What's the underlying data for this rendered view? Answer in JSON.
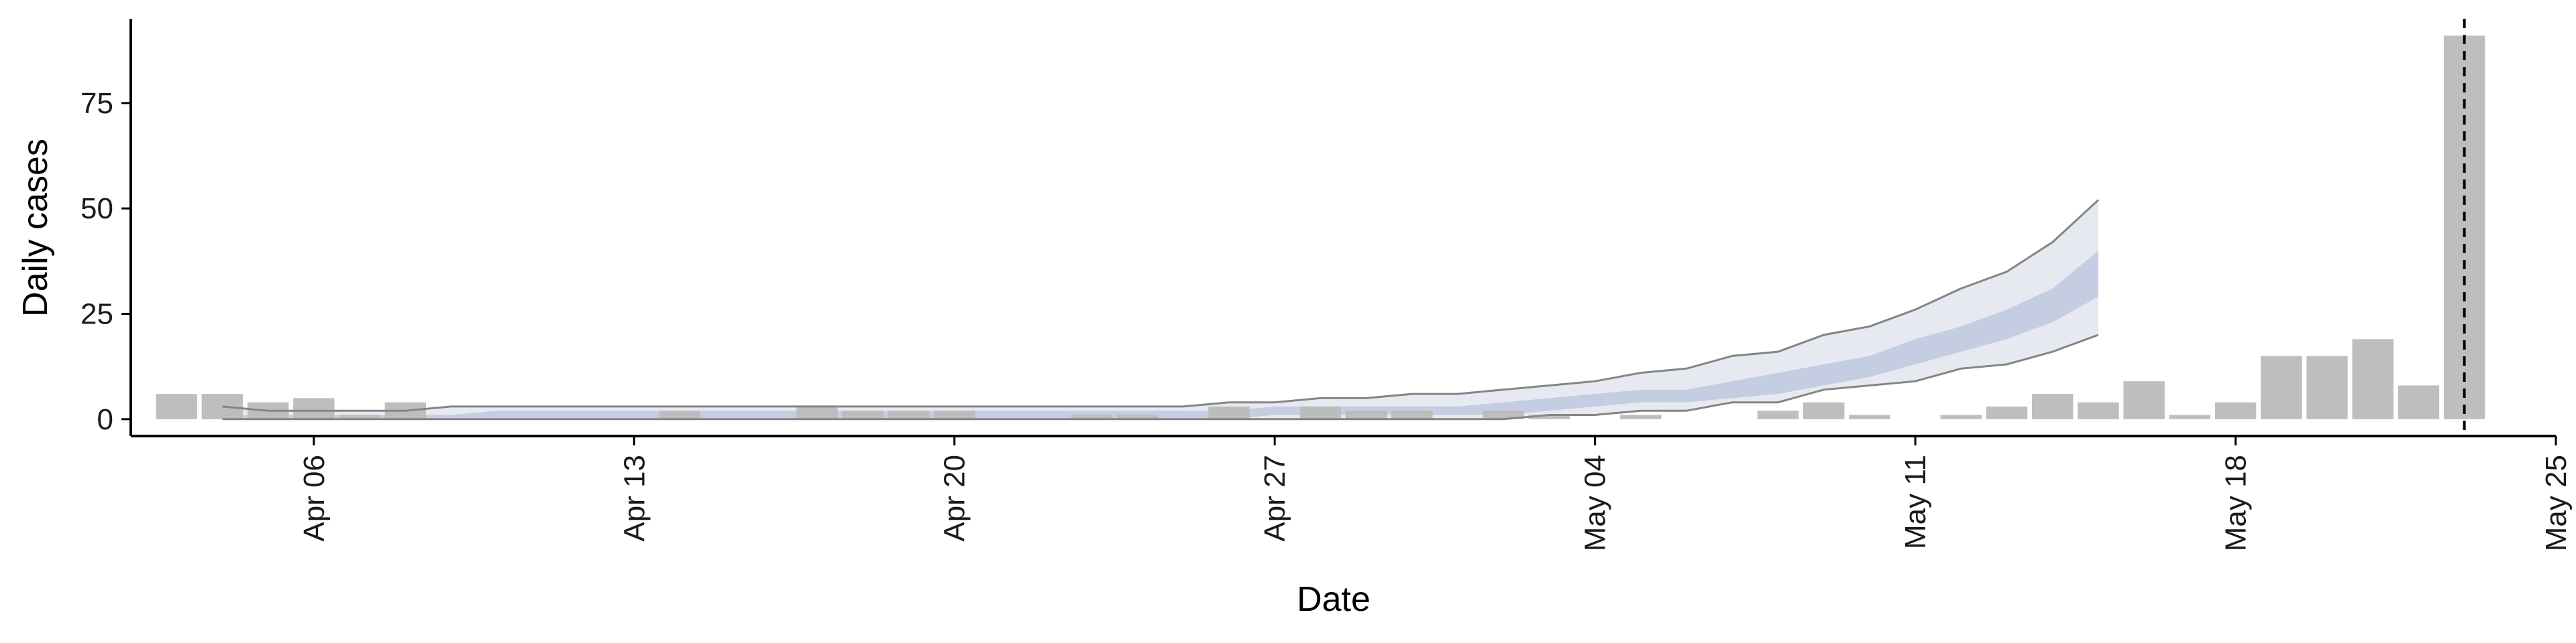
{
  "chart_data": {
    "type": "bar",
    "xlabel": "Date",
    "ylabel": "Daily cases",
    "ylim": [
      -4,
      95
    ],
    "yticks": [
      0,
      25,
      50,
      75
    ],
    "xlim": [
      "2020-04-02",
      "2020-05-25"
    ],
    "xticks": [
      {
        "date": "2020-04-06",
        "label": "Apr 06"
      },
      {
        "date": "2020-04-13",
        "label": "Apr 13"
      },
      {
        "date": "2020-04-20",
        "label": "Apr 20"
      },
      {
        "date": "2020-04-27",
        "label": "Apr 27"
      },
      {
        "date": "2020-05-04",
        "label": "May 04"
      },
      {
        "date": "2020-05-11",
        "label": "May 11"
      },
      {
        "date": "2020-05-18",
        "label": "May 18"
      },
      {
        "date": "2020-05-25",
        "label": "May 25"
      }
    ],
    "grid": false,
    "legend": "none",
    "cases": [
      {
        "date": "2020-04-03",
        "value": 6
      },
      {
        "date": "2020-04-04",
        "value": 6
      },
      {
        "date": "2020-04-05",
        "value": 4
      },
      {
        "date": "2020-04-06",
        "value": 5
      },
      {
        "date": "2020-04-07",
        "value": 1
      },
      {
        "date": "2020-04-08",
        "value": 4
      },
      {
        "date": "2020-04-14",
        "value": 2
      },
      {
        "date": "2020-04-17",
        "value": 3
      },
      {
        "date": "2020-04-18",
        "value": 2
      },
      {
        "date": "2020-04-19",
        "value": 2
      },
      {
        "date": "2020-04-20",
        "value": 2
      },
      {
        "date": "2020-04-23",
        "value": 1
      },
      {
        "date": "2020-04-24",
        "value": 1
      },
      {
        "date": "2020-04-26",
        "value": 3
      },
      {
        "date": "2020-04-28",
        "value": 3
      },
      {
        "date": "2020-04-29",
        "value": 2
      },
      {
        "date": "2020-04-30",
        "value": 2
      },
      {
        "date": "2020-05-02",
        "value": 2
      },
      {
        "date": "2020-05-03",
        "value": 1
      },
      {
        "date": "2020-05-05",
        "value": 1
      },
      {
        "date": "2020-05-08",
        "value": 2
      },
      {
        "date": "2020-05-09",
        "value": 4
      },
      {
        "date": "2020-05-10",
        "value": 1
      },
      {
        "date": "2020-05-12",
        "value": 1
      },
      {
        "date": "2020-05-13",
        "value": 3
      },
      {
        "date": "2020-05-14",
        "value": 6
      },
      {
        "date": "2020-05-15",
        "value": 4
      },
      {
        "date": "2020-05-16",
        "value": 9
      },
      {
        "date": "2020-05-17",
        "value": 1
      },
      {
        "date": "2020-05-18",
        "value": 4
      },
      {
        "date": "2020-05-19",
        "value": 15
      },
      {
        "date": "2020-05-20",
        "value": 15
      },
      {
        "date": "2020-05-21",
        "value": 19
      },
      {
        "date": "2020-05-22",
        "value": 8
      },
      {
        "date": "2020-05-23",
        "value": 91
      }
    ],
    "forecast": {
      "dates": [
        "2020-04-04",
        "2020-04-05",
        "2020-04-06",
        "2020-04-07",
        "2020-04-08",
        "2020-04-09",
        "2020-04-10",
        "2020-04-11",
        "2020-04-12",
        "2020-04-13",
        "2020-04-14",
        "2020-04-15",
        "2020-04-16",
        "2020-04-17",
        "2020-04-18",
        "2020-04-19",
        "2020-04-20",
        "2020-04-21",
        "2020-04-22",
        "2020-04-23",
        "2020-04-24",
        "2020-04-25",
        "2020-04-26",
        "2020-04-27",
        "2020-04-28",
        "2020-04-29",
        "2020-04-30",
        "2020-05-01",
        "2020-05-02",
        "2020-05-03",
        "2020-05-04",
        "2020-05-05",
        "2020-05-06",
        "2020-05-07",
        "2020-05-08",
        "2020-05-09",
        "2020-05-10",
        "2020-05-11",
        "2020-05-12",
        "2020-05-13",
        "2020-05-14",
        "2020-05-15"
      ],
      "upper_90": [
        3,
        2,
        2,
        2,
        2,
        3,
        3,
        3,
        3,
        3,
        3,
        3,
        3,
        3,
        3,
        3,
        3,
        3,
        3,
        3,
        3,
        3,
        4,
        4,
        5,
        5,
        6,
        6,
        7,
        8,
        9,
        11,
        12,
        15,
        16,
        20,
        22,
        26,
        31,
        35,
        42,
        52
      ],
      "upper_50": [
        1,
        1,
        1,
        1,
        1,
        1,
        2,
        2,
        2,
        2,
        2,
        2,
        2,
        2,
        2,
        2,
        2,
        2,
        2,
        2,
        2,
        2,
        2,
        3,
        3,
        3,
        3,
        3,
        4,
        5,
        6,
        7,
        7,
        9,
        11,
        13,
        15,
        19,
        22,
        26,
        31,
        40
      ],
      "lower_50": [
        0,
        0,
        0,
        0,
        0,
        0,
        0,
        0,
        0,
        0,
        0,
        0,
        0,
        0,
        0,
        0,
        0,
        0,
        0,
        0,
        0,
        0,
        0,
        1,
        1,
        1,
        1,
        1,
        1,
        2,
        3,
        4,
        4,
        5,
        6,
        8,
        10,
        13,
        16,
        19,
        23,
        29
      ],
      "lower_90": [
        0,
        0,
        0,
        0,
        0,
        0,
        0,
        0,
        0,
        0,
        0,
        0,
        0,
        0,
        0,
        0,
        0,
        0,
        0,
        0,
        0,
        0,
        0,
        0,
        0,
        0,
        0,
        0,
        0,
        1,
        1,
        2,
        2,
        4,
        4,
        7,
        8,
        9,
        12,
        13,
        16,
        20
      ]
    },
    "vline_date": "2020-05-23",
    "colors": {
      "bar": "#bababa",
      "band_90": "#e7e9f1",
      "band_50": "#c5cde2",
      "band_line": "#858585",
      "vline": "#000000",
      "axis": "#000000"
    }
  }
}
